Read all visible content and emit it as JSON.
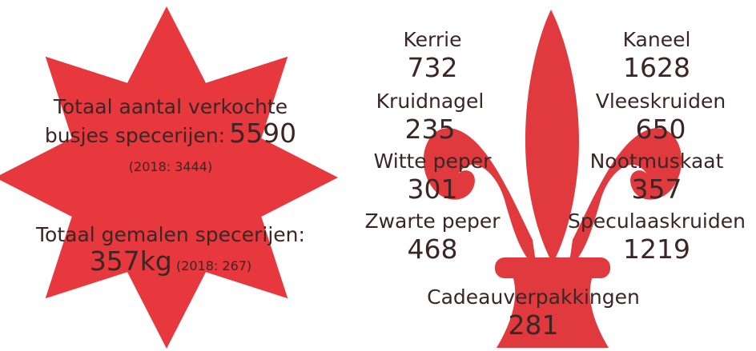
{
  "star": {
    "line1": "Totaal aantal verkochte",
    "line2": "busjes specerijen:",
    "total": 5590,
    "previous": "(2018: 3444)",
    "ground_label": "Totaal gemalen specerijen:",
    "ground_amount": "357kg",
    "ground_previous": "(2018: 267)"
  },
  "items": [
    {
      "name": "Kerrie",
      "count": 732
    },
    {
      "name": "Kaneel",
      "count": 1628
    },
    {
      "name": "Kruidnagel",
      "count": 235
    },
    {
      "name": "Vleeskruiden",
      "count": 650
    },
    {
      "name": "Witte peper",
      "count": 301
    },
    {
      "name": "Nootmuskaat",
      "count": 357
    },
    {
      "name": "Zwarte peper",
      "count": 468
    },
    {
      "name": "Speculaaskruiden",
      "count": 1219
    },
    {
      "name": "Cadeauverpakkingen",
      "count": 281
    }
  ]
}
